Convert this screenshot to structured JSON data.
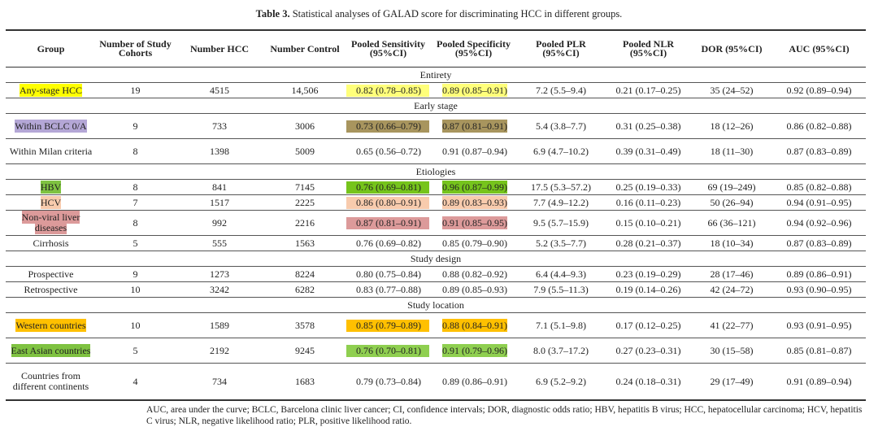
{
  "caption": {
    "label": "Table 3.",
    "text": " Statistical analyses of GALAD score for discriminating HCC in different groups."
  },
  "headers": [
    "Group",
    "Number of Study Cohorts",
    "Number HCC",
    "Number Control",
    "Pooled Sensitivity (95%CI)",
    "Pooled Specificity (95%CI)",
    "Pooled PLR (95%CI)",
    "Pooled NLR (95%CI)",
    "DOR (95%CI)",
    "AUC (95%CI)"
  ],
  "sections": [
    {
      "title": "Entirety",
      "rows": [
        {
          "group": "Any-stage HCC",
          "cohorts": "19",
          "hcc": "4515",
          "control": "14,506",
          "sens": "0.82 (0.78–0.85)",
          "spec": "0.89 (0.85–0.91)",
          "plr": "7.2 (5.5–9.4)",
          "nlr": "0.21 (0.17–0.25)",
          "dor": "35 (24–52)",
          "auc": "0.92 (0.89–0.94)",
          "group_color": "#ffff00",
          "value_color": "#ffff7a"
        }
      ]
    },
    {
      "title": "Early stage",
      "rows": [
        {
          "group": "Within BCLC 0/A",
          "cohorts": "9",
          "hcc": "733",
          "control": "3006",
          "sens": "0.73 (0.66–0.79)",
          "spec": "0.87 (0.81–0.91)",
          "plr": "5.4 (3.8–7.7)",
          "nlr": "0.31 (0.25–0.38)",
          "dor": "18 (12–26)",
          "auc": "0.86 (0.82–0.88)",
          "group_color": "#b4a7d6",
          "value_color": "#a8955e",
          "size": "tall"
        },
        {
          "group": "Within Milan criteria",
          "cohorts": "8",
          "hcc": "1398",
          "control": "5009",
          "sens": "0.65 (0.56–0.72)",
          "spec": "0.91 (0.87–0.94)",
          "plr": "6.9 (4.7–10.2)",
          "nlr": "0.39 (0.31–0.49)",
          "dor": "18 (11–30)",
          "auc": "0.87 (0.83–0.89)",
          "size": "tall"
        }
      ]
    },
    {
      "title": "Etiologies",
      "rows": [
        {
          "group": "HBV",
          "cohorts": "8",
          "hcc": "841",
          "control": "7145",
          "sens": "0.76 (0.69–0.81)",
          "spec": "0.96 (0.87–0.99)",
          "plr": "17.5 (5.3–57.2)",
          "nlr": "0.25 (0.19–0.33)",
          "dor": "69 (19–249)",
          "auc": "0.85 (0.82–0.88)",
          "group_color": "#7fc241",
          "value_color": "#76c41c"
        },
        {
          "group": "HCV",
          "cohorts": "7",
          "hcc": "1517",
          "control": "2225",
          "sens": "0.86 (0.80–0.91)",
          "spec": "0.89 (0.83–0.93)",
          "plr": "7.7 (4.9–12.2)",
          "nlr": "0.16 (0.11–0.23)",
          "dor": "50 (26–94)",
          "auc": "0.94 (0.91–0.95)",
          "group_color": "#f8cbad",
          "value_color": "#f8cbad"
        },
        {
          "group": "Non-viral liver diseases",
          "cohorts": "8",
          "hcc": "992",
          "control": "2216",
          "sens": "0.87 (0.81–0.91)",
          "spec": "0.91 (0.85–0.95)",
          "plr": "9.5 (5.7–15.9)",
          "nlr": "0.15 (0.10–0.21)",
          "dor": "66 (36–121)",
          "auc": "0.94 (0.92–0.96)",
          "group_color": "#dc9a9a",
          "value_color": "#dc9a9a",
          "size": "tall"
        },
        {
          "group": "Cirrhosis",
          "cohorts": "5",
          "hcc": "555",
          "control": "1563",
          "sens": "0.76 (0.69–0.82)",
          "spec": "0.85 (0.79–0.90)",
          "plr": "5.2 (3.5–7.7)",
          "nlr": "0.28 (0.21–0.37)",
          "dor": "18 (10–34)",
          "auc": "0.87 (0.83–0.89)"
        }
      ]
    },
    {
      "title": "Study design",
      "rows": [
        {
          "group": "Prospective",
          "cohorts": "9",
          "hcc": "1273",
          "control": "8224",
          "sens": "0.80 (0.75–0.84)",
          "spec": "0.88 (0.82–0.92)",
          "plr": "6.4 (4.4–9.3)",
          "nlr": "0.23 (0.19–0.29)",
          "dor": "28 (17–46)",
          "auc": "0.89 (0.86–0.91)"
        },
        {
          "group": "Retrospective",
          "cohorts": "10",
          "hcc": "3242",
          "control": "6282",
          "sens": "0.83 (0.77–0.88)",
          "spec": "0.89 (0.85–0.93)",
          "plr": "7.9 (5.5–11.3)",
          "nlr": "0.19 (0.14–0.26)",
          "dor": "42 (24–72)",
          "auc": "0.93 (0.90–0.95)"
        }
      ]
    },
    {
      "title": "Study location",
      "rows": [
        {
          "group": "Western countries",
          "cohorts": "10",
          "hcc": "1589",
          "control": "3578",
          "sens": "0.85 (0.79–0.89)",
          "spec": "0.88 (0.84–0.91)",
          "plr": "7.1 (5.1–9.8)",
          "nlr": "0.17 (0.12–0.25)",
          "dor": "41 (22–77)",
          "auc": "0.93 (0.91–0.95)",
          "group_color": "#ffc000",
          "value_color": "#ffc000",
          "size": "tall"
        },
        {
          "group": "East Asian countries",
          "cohorts": "5",
          "hcc": "2192",
          "control": "9245",
          "sens": "0.76 (0.70–0.81)",
          "spec": "0.91 (0.79–0.96)",
          "plr": "8.0 (3.7–17.2)",
          "nlr": "0.27 (0.23–0.31)",
          "dor": "30 (15–58)",
          "auc": "0.85 (0.81–0.87)",
          "group_color": "#7fc241",
          "value_color": "#8fcf50",
          "size": "tall"
        },
        {
          "group": "Countries from different continents",
          "cohorts": "4",
          "hcc": "734",
          "control": "1683",
          "sens": "0.79 (0.73–0.84)",
          "spec": "0.89 (0.86–0.91)",
          "plr": "6.9 (5.2–9.2)",
          "nlr": "0.24 (0.18–0.31)",
          "dor": "29 (17–49)",
          "auc": "0.91 (0.89–0.94)",
          "size": "xtall"
        }
      ]
    }
  ],
  "footnote": "AUC, area under the curve; BCLC, Barcelona clinic liver cancer; CI, confidence intervals; DOR, diagnostic odds ratio; HBV, hepatitis B virus; HCC, hepatocellular carcinoma; HCV, hepatitis C virus; NLR, negative likelihood ratio; PLR, positive likelihood ratio."
}
